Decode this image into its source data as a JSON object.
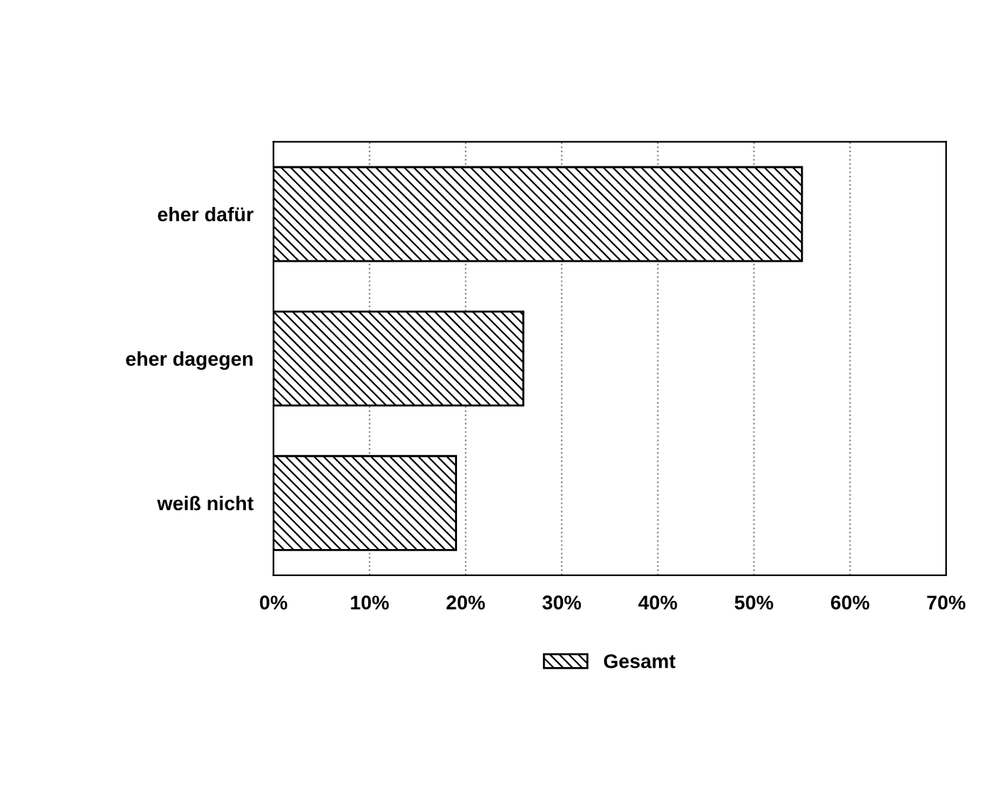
{
  "chart_data": {
    "type": "bar",
    "orientation": "horizontal",
    "categories": [
      "eher dafür",
      "eher dagegen",
      "weiß nicht"
    ],
    "series": [
      {
        "name": "Gesamt",
        "color": "#000000",
        "values": [
          55,
          26,
          19
        ]
      }
    ],
    "xlim": [
      0,
      70
    ],
    "xticks": [
      {
        "value": 0,
        "label": "0%"
      },
      {
        "value": 10,
        "label": "10%"
      },
      {
        "value": 20,
        "label": "20%"
      },
      {
        "value": 30,
        "label": "30%"
      },
      {
        "value": 40,
        "label": "40%"
      },
      {
        "value": 50,
        "label": "50%"
      },
      {
        "value": 60,
        "label": "60%"
      },
      {
        "value": 70,
        "label": "70%"
      }
    ],
    "grid": "x",
    "legend": "bottom"
  }
}
